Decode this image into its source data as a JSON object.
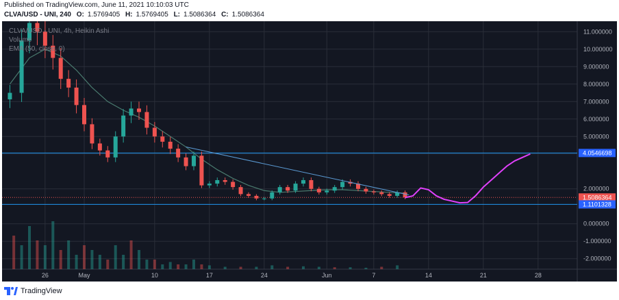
{
  "header": {
    "published": "Published on TradingView.com, June 11, 2021 10:10:03 UTC",
    "symbol": "CLVA/USD - UNI, 240",
    "o_label": "O:",
    "o_value": "1.5769405",
    "h_label": "H:",
    "h_value": "1.5769405",
    "l_label": "L:",
    "l_value": "1.5086364",
    "c_label": "C:",
    "c_value": "1.5086364"
  },
  "legend": {
    "title": "CLVA/USD - UNI, 4h, Heikin Ashi",
    "volume": "Volume",
    "ema": "EMA (50, close, 0)"
  },
  "footer": {
    "brand": "TradingView"
  },
  "colors": {
    "background": "#131722",
    "up": "#26a69a",
    "down": "#ef5350",
    "ema": "#4a7b6f",
    "hline": "#2196f3",
    "trendline": "#5b9bd5",
    "projection": "#e040fb",
    "last_price": "#ef5350",
    "label_blue": "#2962ff"
  },
  "chart_data": {
    "type": "candlestick",
    "title": "CLVA/USD - UNI, 4h, Heikin Ashi",
    "ylim": [
      -2.6,
      11.6
    ],
    "y_ticks": [
      "11.000000",
      "10.000000",
      "9.000000",
      "8.000000",
      "7.000000",
      "6.000000",
      "5.000000",
      "4.000000",
      "2.000000",
      "0.000000",
      "-1.000000",
      "-2.000000"
    ],
    "y_tick_values": [
      11,
      10,
      9,
      8,
      7,
      6,
      5,
      4,
      2,
      0,
      -1,
      -2
    ],
    "x_ticks": [
      "26",
      "May",
      "10",
      "17",
      "24",
      "Jun",
      "7",
      "14",
      "21",
      "28"
    ],
    "x_tick_days": [
      -5,
      0,
      9,
      16,
      23,
      31,
      37,
      44,
      51,
      58
    ],
    "price_labels": [
      {
        "text": "4.0546698",
        "value": 4.0546698,
        "kind": "hline"
      },
      {
        "text": "1.5086364",
        "value": 1.5086364,
        "kind": "last"
      },
      {
        "text": "1.1101328",
        "value": 1.1101328,
        "kind": "hline"
      }
    ],
    "price_series": {
      "name": "CLVA/USD",
      "day": [
        -9.5,
        -8,
        -7,
        -6,
        -5,
        -4,
        -3,
        -2,
        -1,
        0,
        1,
        2,
        3,
        4,
        5,
        6,
        7,
        8,
        9,
        10,
        11,
        12,
        13,
        14,
        15,
        16,
        17,
        18,
        19,
        20,
        21,
        22,
        23,
        24,
        25,
        26,
        27,
        28,
        29,
        30,
        31,
        32,
        33,
        34,
        35,
        36,
        37,
        38,
        39,
        40,
        41
      ],
      "close": [
        7.5,
        10.5,
        11.5,
        11.0,
        10.2,
        9.5,
        8.3,
        7.8,
        6.8,
        5.7,
        4.6,
        4.2,
        3.8,
        5.0,
        6.2,
        6.6,
        6.4,
        5.5,
        5.0,
        4.7,
        4.3,
        3.8,
        3.3,
        3.9,
        2.2,
        2.3,
        2.5,
        2.4,
        2.1,
        1.7,
        1.6,
        1.45,
        1.45,
        1.8,
        2.1,
        1.9,
        2.3,
        2.5,
        2.0,
        1.8,
        1.9,
        2.1,
        2.4,
        2.3,
        2.0,
        1.85,
        1.8,
        1.7,
        1.6,
        1.8,
        1.51
      ]
    },
    "ema_series": {
      "day": [
        -9.5,
        -7,
        -5,
        -3,
        -1,
        1,
        3,
        5,
        7,
        9,
        11,
        13,
        15,
        17,
        19,
        21,
        23,
        25,
        27,
        29,
        31,
        33,
        35,
        37,
        39,
        41
      ],
      "value": [
        8.0,
        9.5,
        10.0,
        9.6,
        8.8,
        7.8,
        7.0,
        6.5,
        6.1,
        5.6,
        5.0,
        4.4,
        3.7,
        3.1,
        2.6,
        2.2,
        1.9,
        1.8,
        1.85,
        1.9,
        1.95,
        1.95,
        1.9,
        1.85,
        1.8,
        1.75
      ]
    },
    "volume_series": {
      "day": [
        -9,
        -8,
        -7,
        -6,
        -5,
        -4,
        -3,
        -2,
        -1,
        0,
        1,
        2,
        3,
        4,
        5,
        6,
        7,
        8,
        9,
        10,
        11,
        12,
        13,
        14,
        15,
        16,
        18,
        20,
        22,
        24,
        26,
        28,
        30,
        32,
        34,
        36,
        38,
        40
      ],
      "volume": [
        0.7,
        0.5,
        0.9,
        0.6,
        0.5,
        1.0,
        0.4,
        0.6,
        0.3,
        0.5,
        0.4,
        0.3,
        0.2,
        0.5,
        0.3,
        0.6,
        0.4,
        0.2,
        0.2,
        0.1,
        0.15,
        0.1,
        0.1,
        0.2,
        0.1,
        0.08,
        0.05,
        0.05,
        0.05,
        0.08,
        0.05,
        0.06,
        0.05,
        0.04,
        0.04,
        0.03,
        0.05,
        0.08
      ]
    },
    "horizontal_lines": [
      4.0546698,
      1.1101328
    ],
    "trendline": {
      "day": [
        13,
        41.5
      ],
      "value": [
        4.4,
        1.65
      ]
    },
    "projection": {
      "day": [
        41,
        42,
        43,
        44,
        45,
        46,
        47,
        48,
        49,
        50,
        51,
        52,
        53,
        54,
        55,
        56,
        57
      ],
      "value": [
        1.5,
        1.6,
        2.05,
        1.95,
        1.6,
        1.4,
        1.3,
        1.2,
        1.22,
        1.6,
        2.1,
        2.5,
        2.9,
        3.3,
        3.6,
        3.8,
        4.0
      ]
    }
  }
}
